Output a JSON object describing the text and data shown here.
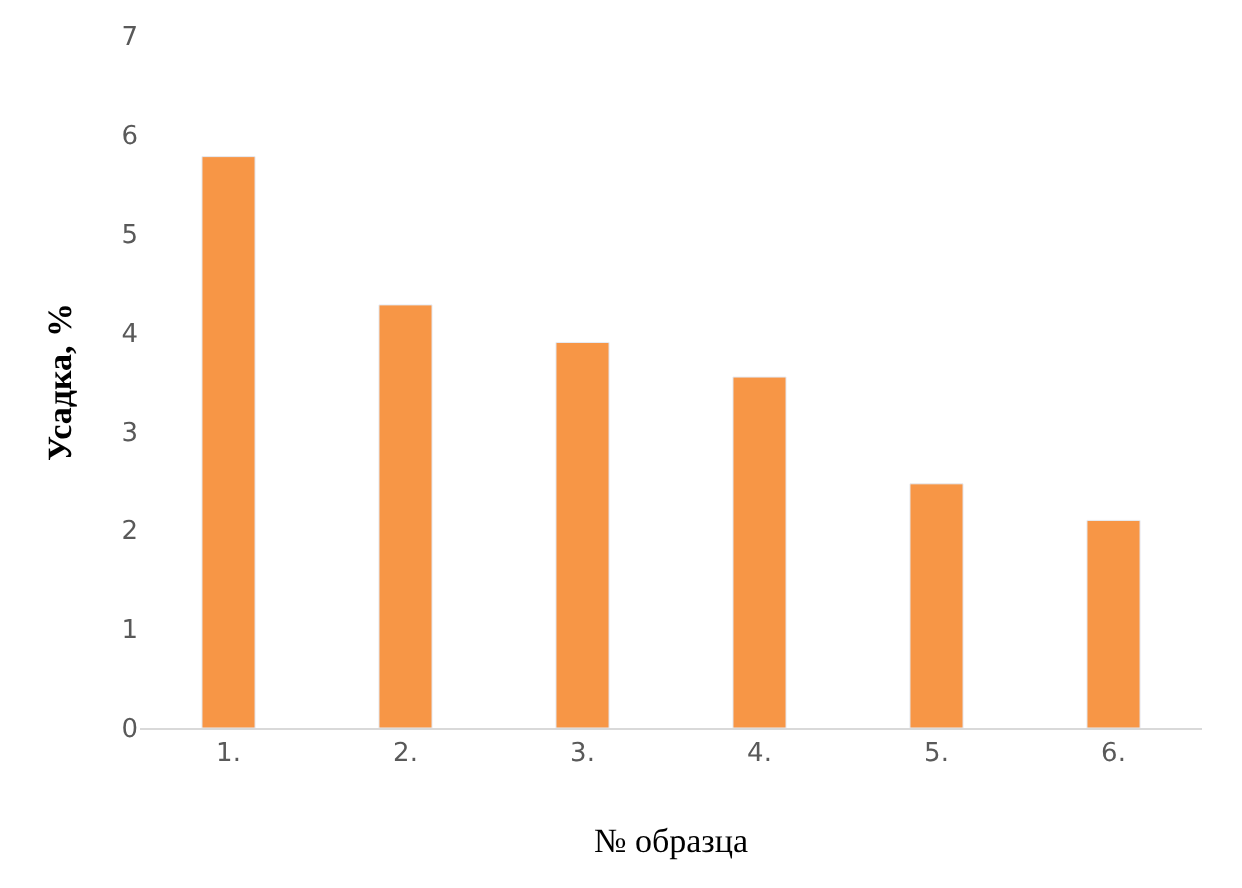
{
  "chart_data": {
    "type": "bar",
    "xlabel": "№ образца",
    "ylabel": "Усадка, %",
    "categories": [
      "1.",
      "2.",
      "3.",
      "4.",
      "5.",
      "6."
    ],
    "values": [
      5.78,
      4.28,
      3.9,
      3.55,
      2.47,
      2.1
    ],
    "color": "#f79646",
    "ylim": [
      0,
      7
    ],
    "yticks": [
      0,
      1,
      2,
      3,
      4,
      5,
      6,
      7
    ]
  }
}
